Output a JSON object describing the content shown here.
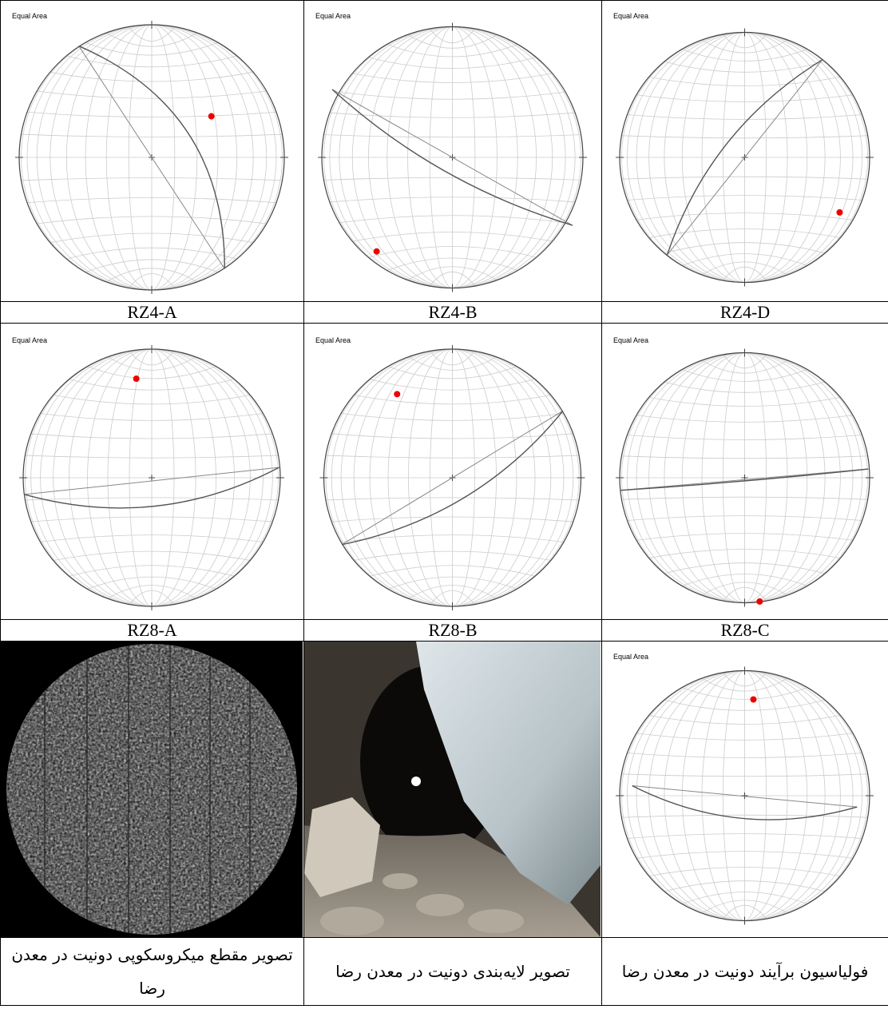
{
  "table": {
    "rows": [
      [
        {
          "net_label": "Equal Area",
          "caption": "RZ4-A"
        },
        {
          "net_label": "Equal Area",
          "caption": "RZ4-B"
        },
        {
          "net_label": "Equal Area",
          "caption": "RZ4-D"
        }
      ],
      [
        {
          "net_label": "Equal Area",
          "caption": "RZ8-A"
        },
        {
          "net_label": "Equal Area",
          "caption": "RZ8-B"
        },
        {
          "net_label": "Equal Area",
          "caption": "RZ8-C"
        }
      ],
      [
        {
          "caption": "تصویر مقطع میکروسکوپی دونیت در معدن رضا"
        },
        {
          "caption": "تصویر لایه‌بندی دونیت در معدن رضا"
        },
        {
          "net_label": "Equal Area",
          "caption": "فولیاسیون برآیند دونیت در معدن رضا"
        }
      ]
    ]
  }
}
